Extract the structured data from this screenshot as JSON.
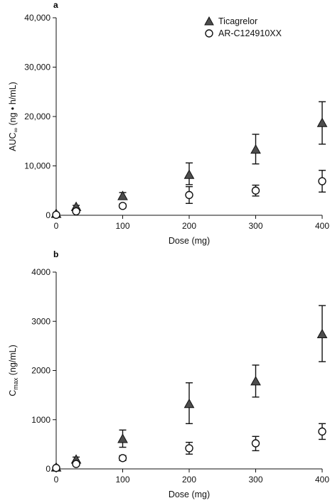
{
  "colors": {
    "ticagrelor_fill": "#4d4d4d",
    "metabolite_fill": "#ffffff",
    "stroke": "#111111"
  },
  "chart_data": [
    {
      "type": "scatter",
      "panel_label": "a",
      "xlabel": "Dose (mg)",
      "ylabel": "AUC∞ (ng • h/mL)",
      "ylabel_main": "AUC",
      "ylabel_sub": "∞",
      "ylabel_rest": " (ng • h/mL)",
      "xlim": [
        0,
        400
      ],
      "ylim": [
        0,
        40000
      ],
      "xticks": [
        0,
        100,
        200,
        300,
        400
      ],
      "yticks": [
        0,
        10000,
        20000,
        30000,
        40000
      ],
      "ytick_labels": [
        "0",
        "10,000",
        "20,000",
        "30,000",
        "40,000"
      ],
      "legend_position": "top-right",
      "series": [
        {
          "name": "Ticagrelor",
          "marker": "triangle",
          "x": [
            0,
            30,
            100,
            200,
            300,
            400
          ],
          "y": [
            300,
            1700,
            3900,
            8200,
            13300,
            18700
          ],
          "err_low": [
            300,
            1350,
            3300,
            6200,
            10400,
            14400
          ],
          "err_high": [
            300,
            2000,
            4600,
            10600,
            16400,
            23000
          ]
        },
        {
          "name": "AR-C124910XX",
          "marker": "circle",
          "x": [
            0,
            30,
            100,
            200,
            300,
            400
          ],
          "y": [
            100,
            800,
            1900,
            4100,
            5000,
            6900
          ],
          "err_low": [
            100,
            600,
            1500,
            2400,
            3900,
            4700
          ],
          "err_high": [
            100,
            1000,
            2300,
            5800,
            6100,
            9100
          ]
        }
      ]
    },
    {
      "type": "scatter",
      "panel_label": "b",
      "xlabel": "Dose (mg)",
      "ylabel": "Cmax (ng/mL)",
      "ylabel_main": "C",
      "ylabel_sub": "max",
      "ylabel_rest": " (ng/mL)",
      "xlim": [
        0,
        400
      ],
      "ylim": [
        0,
        4000
      ],
      "xticks": [
        0,
        100,
        200,
        300,
        400
      ],
      "yticks": [
        0,
        1000,
        2000,
        3000,
        4000
      ],
      "ytick_labels": [
        "0",
        "1000",
        "2000",
        "3000",
        "4000"
      ],
      "series": [
        {
          "name": "Ticagrelor",
          "marker": "triangle",
          "x": [
            0,
            30,
            100,
            200,
            300,
            400
          ],
          "y": [
            30,
            190,
            610,
            1320,
            1780,
            2740
          ],
          "err_low": [
            30,
            140,
            440,
            920,
            1460,
            2180
          ],
          "err_high": [
            30,
            240,
            790,
            1750,
            2110,
            3320
          ]
        },
        {
          "name": "AR-C124910XX",
          "marker": "circle",
          "x": [
            0,
            30,
            100,
            200,
            300,
            400
          ],
          "y": [
            20,
            100,
            220,
            420,
            520,
            760
          ],
          "err_low": [
            20,
            70,
            170,
            300,
            370,
            600
          ],
          "err_high": [
            20,
            130,
            270,
            540,
            660,
            920
          ]
        }
      ]
    }
  ]
}
